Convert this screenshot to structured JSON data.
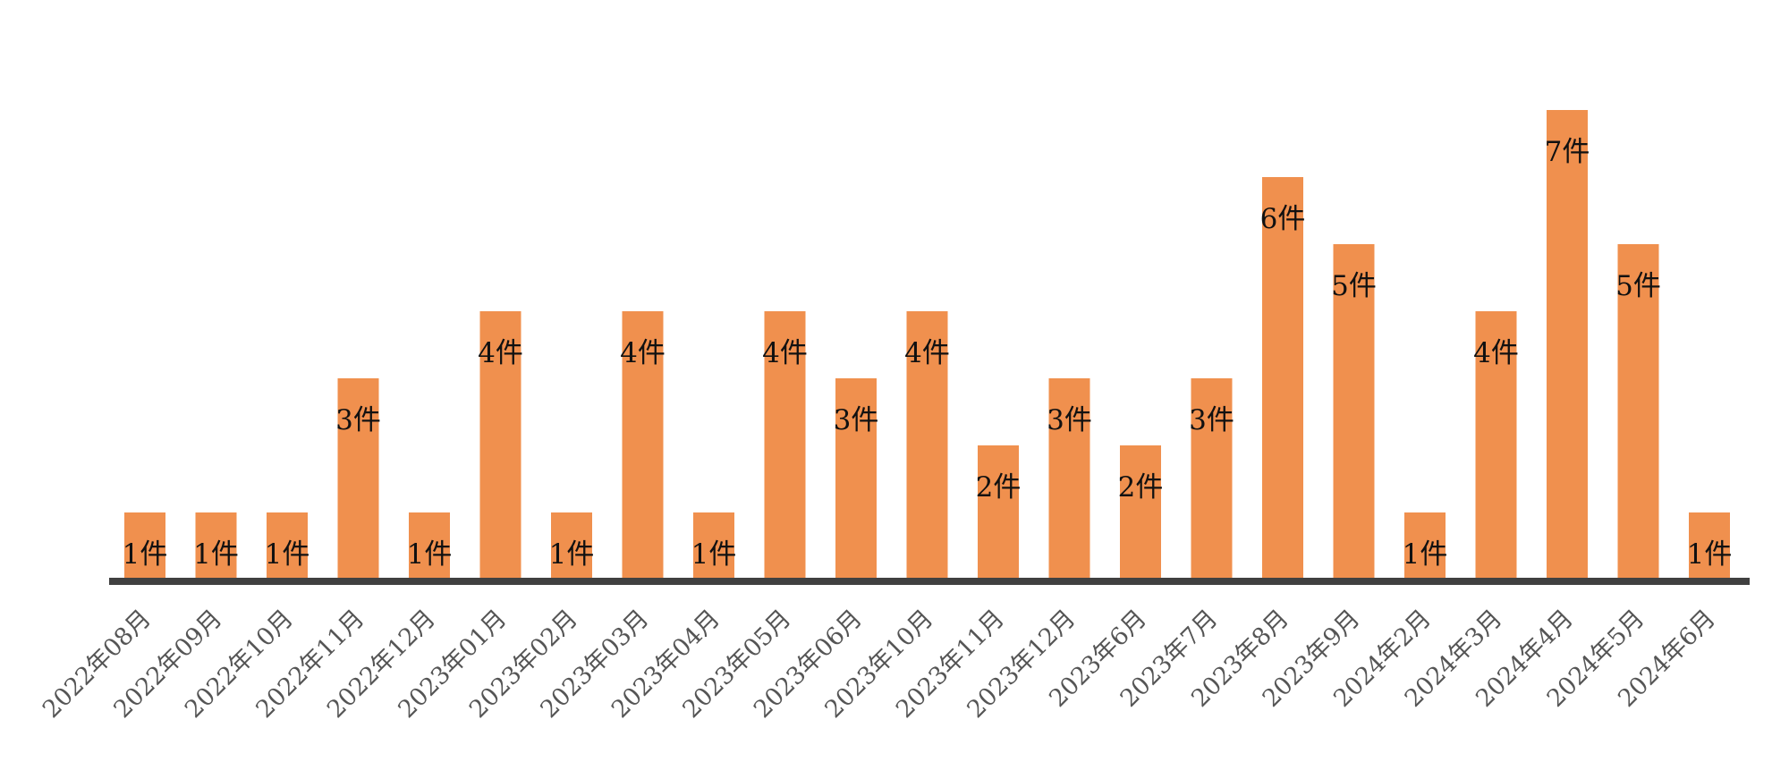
{
  "chart_data": {
    "type": "bar",
    "title": "",
    "xlabel": "",
    "ylabel": "",
    "categories": [
      "2022年08月",
      "2022年09月",
      "2022年10月",
      "2022年11月",
      "2022年12月",
      "2023年01月",
      "2023年02月",
      "2023年03月",
      "2023年04月",
      "2023年05月",
      "2023年06月",
      "2023年10月",
      "2023年11月",
      "2023年12月",
      "2023年6月",
      "2023年7月",
      "2023年8月",
      "2023年9月",
      "2024年2月",
      "2024年3月",
      "2024年4月",
      "2024年5月",
      "2024年6月"
    ],
    "values": [
      1,
      1,
      1,
      3,
      1,
      4,
      1,
      4,
      1,
      4,
      3,
      4,
      2,
      3,
      2,
      3,
      6,
      5,
      1,
      4,
      7,
      5,
      1
    ],
    "data_labels": [
      "1件",
      "1件",
      "1件",
      "3件",
      "1件",
      "4件",
      "1件",
      "4件",
      "1件",
      "4件",
      "3件",
      "4件",
      "2件",
      "3件",
      "2件",
      "3件",
      "6件",
      "5件",
      "1件",
      "4件",
      "7件",
      "5件",
      "1件"
    ],
    "ylim": [
      0,
      7
    ],
    "grid": false,
    "legend": "none",
    "colors": {
      "bar": "#F0904E",
      "axis": "#404040",
      "label": "#111111",
      "tick": "#555555"
    }
  }
}
